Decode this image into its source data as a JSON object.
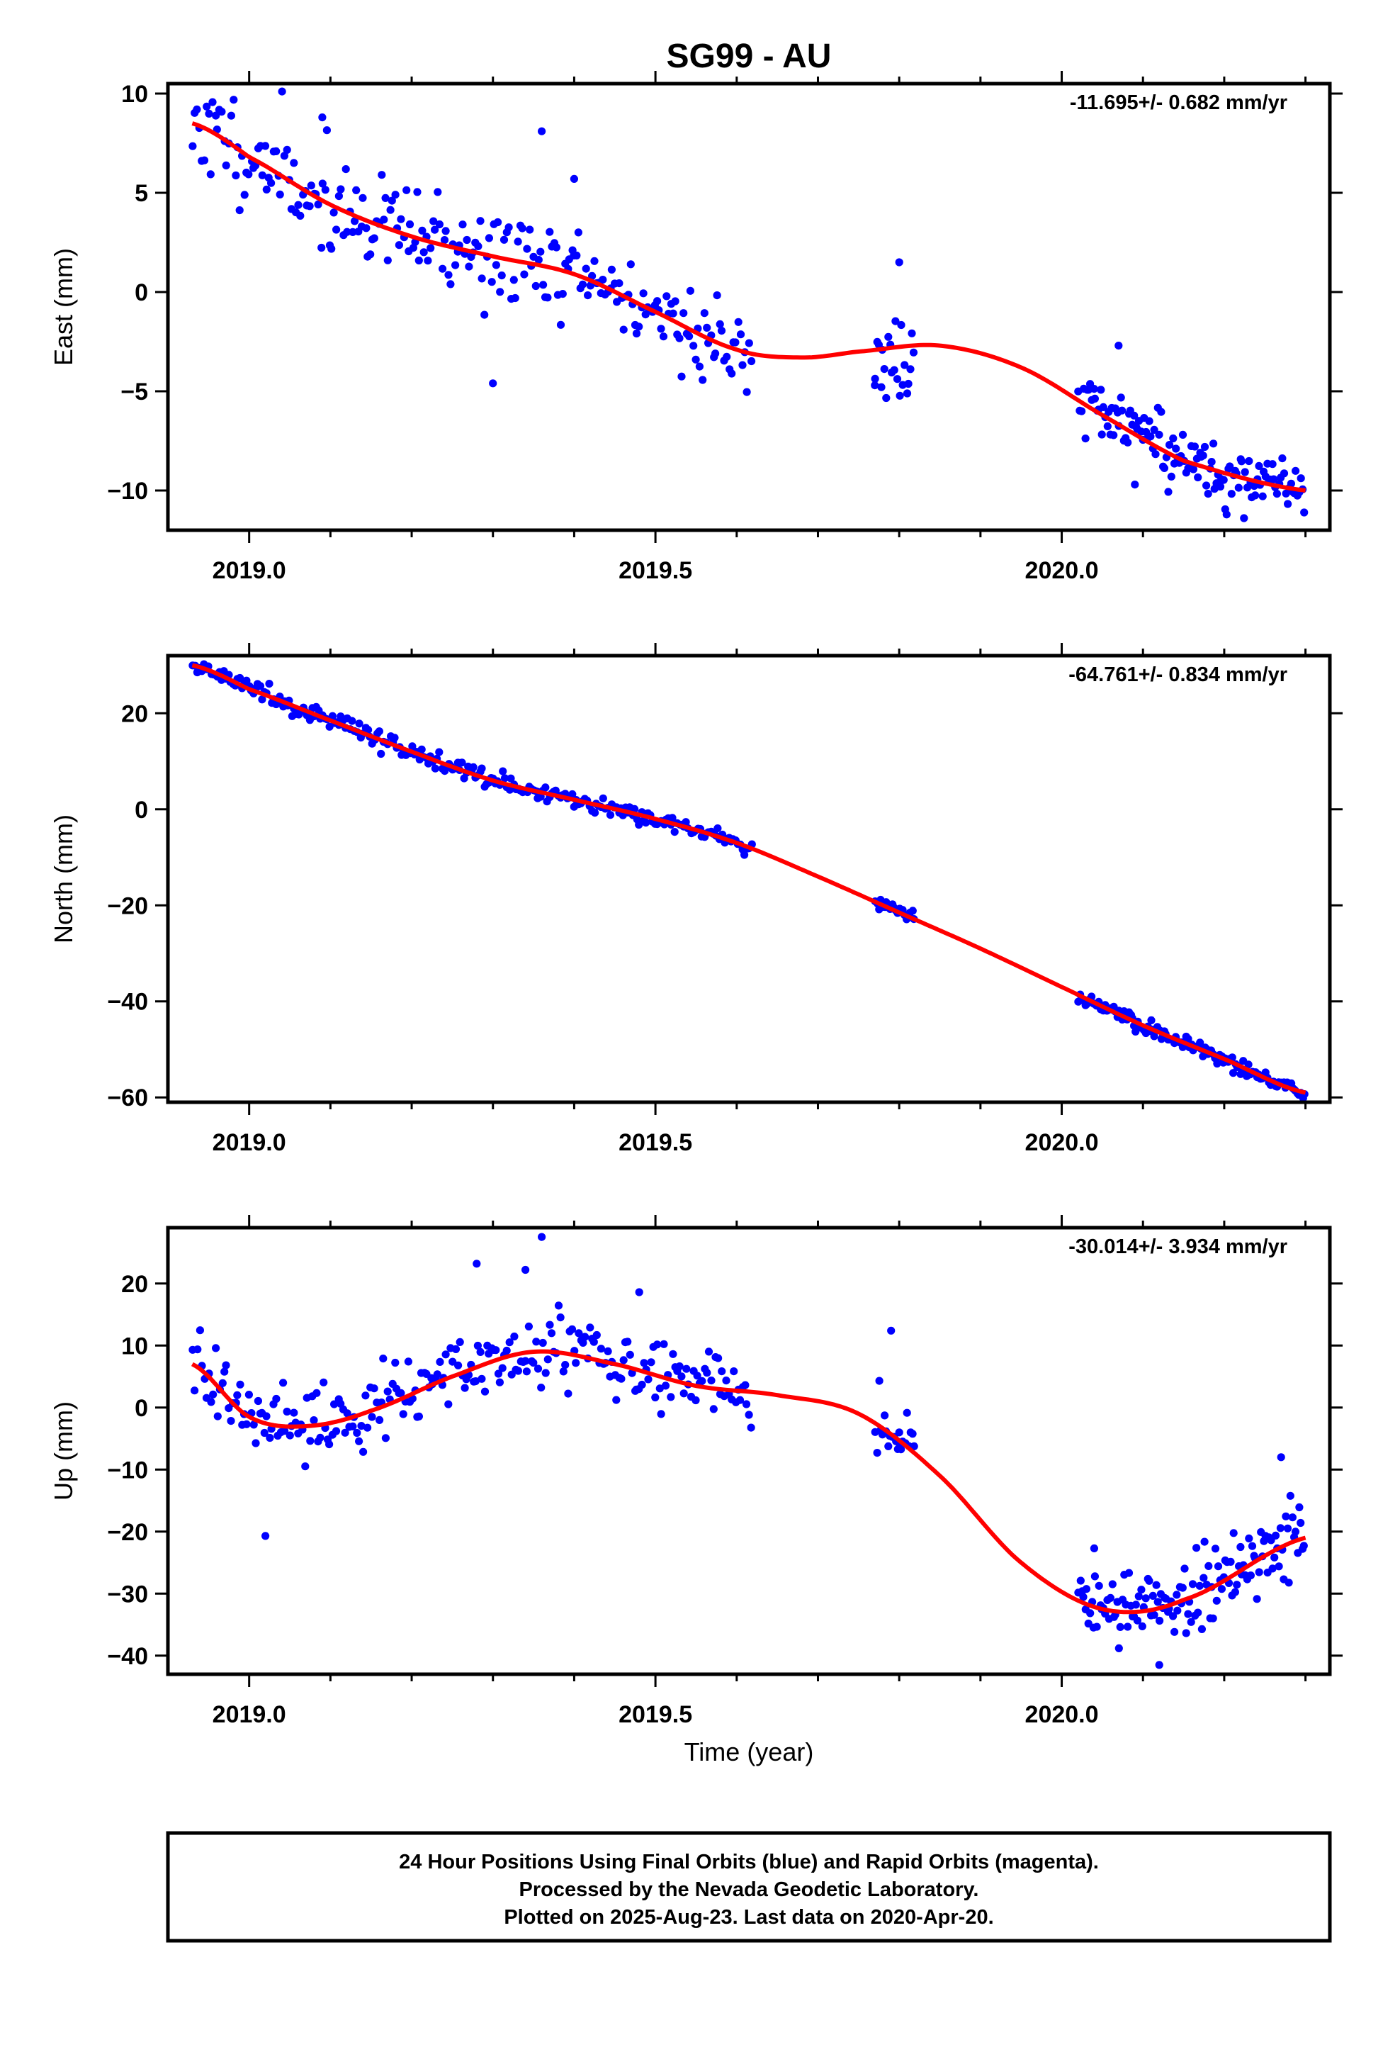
{
  "title": "SG99 - AU",
  "xlabel": "Time (year)",
  "colors": {
    "final_orbits": "#0000ff",
    "rapid_orbits": "#ff00ff",
    "fit": "#ff0000"
  },
  "footer": [
    "24 Hour Positions Using Final Orbits (blue) and Rapid Orbits (magenta).",
    "Processed by the Nevada Geodetic Laboratory.",
    "Plotted on 2025-Aug-23. Last data on 2020-Apr-20."
  ],
  "chart_data": [
    {
      "type": "scatter",
      "ylabel": "East (mm)",
      "rate_label": "-11.695+/- 0.682 mm/yr",
      "xlim": [
        2018.9,
        2020.33
      ],
      "ylim": [
        -12,
        10.5
      ],
      "xticks": [
        2019.0,
        2019.5,
        2020.0
      ],
      "xtick_labels": [
        "2019.0",
        "2019.5",
        "2020.0"
      ],
      "yticks": [
        -10,
        -5,
        0,
        5,
        10
      ],
      "ytick_labels": [
        "−10",
        "−5",
        "0",
        "5",
        "10"
      ],
      "fit": {
        "name": "fit",
        "x": [
          2018.93,
          2019.0,
          2019.1,
          2019.2,
          2019.3,
          2019.4,
          2019.5,
          2019.6,
          2019.68,
          2019.75,
          2019.85,
          2019.95,
          2020.05,
          2020.15,
          2020.3
        ],
        "y": [
          8.5,
          6.8,
          4.4,
          2.8,
          1.8,
          0.9,
          -1.0,
          -2.9,
          -3.3,
          -3.0,
          -2.7,
          -3.8,
          -6.2,
          -8.5,
          -10.0
        ]
      },
      "segments": [
        {
          "x0": 2018.93,
          "x1": 2019.62,
          "n": 250,
          "seed": 11,
          "noise": 1.6,
          "outliers": [
            [
              2019.36,
              8.1
            ],
            [
              2019.09,
              8.8
            ],
            [
              2019.3,
              -4.6
            ],
            [
              2019.4,
              5.7
            ]
          ]
        },
        {
          "x0": 2019.77,
          "x1": 2019.82,
          "n": 22,
          "seed": 23,
          "noise": 1.5,
          "outliers": [
            [
              2019.8,
              1.5
            ],
            [
              2019.77,
              -4.7
            ]
          ]
        },
        {
          "x0": 2020.02,
          "x1": 2020.3,
          "n": 135,
          "seed": 37,
          "noise": 1.1,
          "outliers": [
            [
              2020.07,
              -2.7
            ],
            [
              2020.09,
              -9.7
            ]
          ]
        }
      ]
    },
    {
      "type": "scatter",
      "ylabel": "North (mm)",
      "rate_label": "-64.761+/- 0.834 mm/yr",
      "xlim": [
        2018.9,
        2020.33
      ],
      "ylim": [
        -61,
        32
      ],
      "xticks": [
        2019.0,
        2019.5,
        2020.0
      ],
      "xtick_labels": [
        "2019.0",
        "2019.5",
        "2020.0"
      ],
      "yticks": [
        -60,
        -40,
        -20,
        0,
        20
      ],
      "ytick_labels": [
        "−60",
        "−40",
        "−20",
        "0",
        "20"
      ],
      "fit": {
        "name": "fit",
        "x": [
          2018.93,
          2019.0,
          2019.1,
          2019.2,
          2019.3,
          2019.4,
          2019.5,
          2019.6,
          2019.7,
          2019.8,
          2019.9,
          2020.0,
          2020.1,
          2020.2,
          2020.3
        ],
        "y": [
          30,
          25,
          18.5,
          12,
          6,
          2,
          -2,
          -7,
          -14,
          -21.5,
          -29,
          -37,
          -45,
          -52,
          -59
        ]
      },
      "segments": [
        {
          "x0": 2018.93,
          "x1": 2019.62,
          "n": 250,
          "seed": 51,
          "noise": 1.2,
          "outliers": []
        },
        {
          "x0": 2019.77,
          "x1": 2019.82,
          "n": 22,
          "seed": 63,
          "noise": 1.2,
          "outliers": []
        },
        {
          "x0": 2020.02,
          "x1": 2020.3,
          "n": 135,
          "seed": 77,
          "noise": 1.2,
          "outliers": []
        }
      ]
    },
    {
      "type": "scatter",
      "ylabel": "Up (mm)",
      "rate_label": "-30.014+/- 3.934 mm/yr",
      "xlim": [
        2018.9,
        2020.33
      ],
      "ylim": [
        -43,
        29
      ],
      "xticks": [
        2019.0,
        2019.5,
        2020.0
      ],
      "xtick_labels": [
        "2019.0",
        "2019.5",
        "2020.0"
      ],
      "yticks": [
        -40,
        -30,
        -20,
        -10,
        0,
        10,
        20
      ],
      "ytick_labels": [
        "−40",
        "−30",
        "−20",
        "−10",
        "0",
        "10",
        "20"
      ],
      "fit": {
        "name": "fit",
        "x": [
          2018.93,
          2019.0,
          2019.07,
          2019.15,
          2019.25,
          2019.35,
          2019.45,
          2019.55,
          2019.65,
          2019.75,
          2019.85,
          2019.95,
          2020.05,
          2020.15,
          2020.3
        ],
        "y": [
          7,
          -1.5,
          -3,
          -0.5,
          5,
          9,
          7,
          3.5,
          2,
          -1,
          -11,
          -25,
          -32.5,
          -31,
          -21
        ]
      },
      "segments": [
        {
          "x0": 2018.93,
          "x1": 2019.62,
          "n": 250,
          "seed": 91,
          "noise": 4.0,
          "outliers": [
            [
              2019.36,
              27.5
            ],
            [
              2019.28,
              23.2
            ],
            [
              2019.02,
              -20.7
            ],
            [
              2019.34,
              22.2
            ],
            [
              2019.48,
              18.6
            ]
          ]
        },
        {
          "x0": 2019.77,
          "x1": 2019.82,
          "n": 22,
          "seed": 103,
          "noise": 3.5,
          "outliers": [
            [
              2019.79,
              12.4
            ],
            [
              2019.8,
              -4
            ]
          ]
        },
        {
          "x0": 2020.02,
          "x1": 2020.3,
          "n": 135,
          "seed": 117,
          "noise": 4.0,
          "outliers": [
            [
              2020.27,
              -8
            ],
            [
              2020.12,
              -41.5
            ],
            [
              2020.04,
              -22.7
            ]
          ]
        }
      ]
    }
  ]
}
